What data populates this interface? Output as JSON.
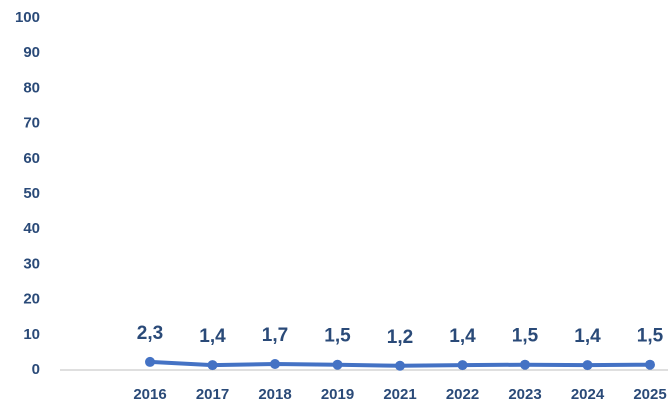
{
  "chart_data": {
    "type": "line",
    "categories": [
      "2016",
      "2017",
      "2018",
      "2019",
      "2021",
      "2022",
      "2023",
      "2024",
      "2025"
    ],
    "series": [
      {
        "name": "Series",
        "color": "#4472c4",
        "values": [
          2.3,
          1.4,
          1.7,
          1.5,
          1.2,
          1.4,
          1.5,
          1.4,
          1.5
        ],
        "value_labels": [
          "2,3",
          "1,4",
          "1,7",
          "1,5",
          "1,2",
          "1,4",
          "1,5",
          "1,4",
          "1,5"
        ]
      }
    ],
    "ylim": [
      0,
      100
    ],
    "yticks": [
      0,
      10,
      20,
      30,
      40,
      50,
      60,
      70,
      80,
      90,
      100
    ],
    "grid": false
  }
}
